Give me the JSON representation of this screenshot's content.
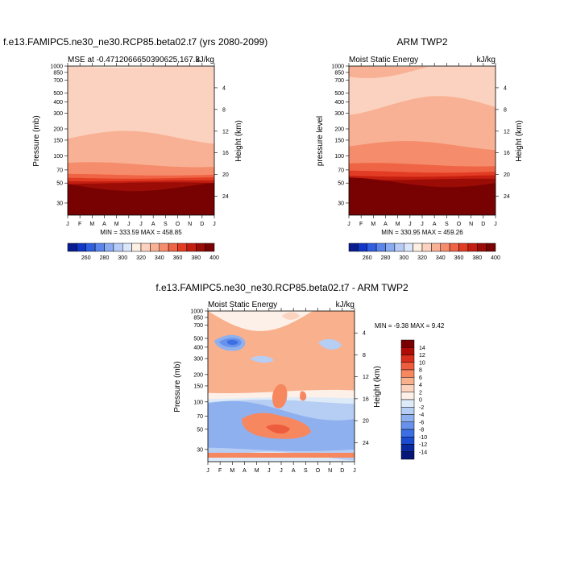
{
  "chart_data": [
    {
      "type": "heatmap",
      "title": "f.e13.FAMIPC5.ne30_ne30.RCP85.beta02.t7 (yrs 2080-2099)",
      "subtitle_left": "MSE at -0.4712066650390625,167.3",
      "subtitle_right": "kJ/kg",
      "ylabel": "Pressure (mb)",
      "ylabel_right": "Height (km)",
      "x_ticks": [
        "J",
        "F",
        "M",
        "A",
        "M",
        "J",
        "J",
        "A",
        "S",
        "O",
        "N",
        "D",
        "J"
      ],
      "y_ticks": [
        "30",
        "50",
        "70",
        "100",
        "150",
        "200",
        "300",
        "400",
        "500",
        "700",
        "850",
        "1000"
      ],
      "y_ticks_right": [
        "24",
        "20",
        "16",
        "12",
        "8",
        "4"
      ],
      "stats": "MIN = 333.59 MAX = 458.85",
      "colorbar_labels": [
        "260",
        "280",
        "300",
        "320",
        "340",
        "360",
        "380",
        "400"
      ],
      "bands": [
        {
          "p": 1000,
          "level": 330
        },
        {
          "p": 850,
          "level": 335
        },
        {
          "p": 600,
          "level": 330
        },
        {
          "p": 160,
          "level": 340
        },
        {
          "p": 80,
          "level": 350
        },
        {
          "p": 62,
          "level": 360
        },
        {
          "p": 57,
          "level": 370
        },
        {
          "p": 53,
          "level": 380
        },
        {
          "p": 50,
          "level": 390
        },
        {
          "p": 46,
          "level": 400
        }
      ]
    },
    {
      "type": "heatmap",
      "title": "ARM TWP2",
      "subtitle_left": "Moist Static Energy",
      "subtitle_right": "kJ/kg",
      "ylabel": "pressure level",
      "ylabel_right": "Height (km)",
      "x_ticks": [
        "J",
        "F",
        "M",
        "A",
        "M",
        "J",
        "J",
        "A",
        "S",
        "O",
        "N",
        "D",
        "J"
      ],
      "y_ticks": [
        "30",
        "50",
        "70",
        "100",
        "150",
        "200",
        "300",
        "400",
        "500",
        "700",
        "850",
        "1000"
      ],
      "y_ticks_right": [
        "24",
        "20",
        "16",
        "12",
        "8",
        "4"
      ],
      "stats": "MIN = 330.95 MAX = 459.26",
      "colorbar_labels": [
        "260",
        "280",
        "300",
        "320",
        "340",
        "360",
        "380",
        "400"
      ],
      "bands": [
        {
          "p": 1000,
          "level": 340
        },
        {
          "p": 930,
          "level": 330
        },
        {
          "p": 360,
          "level": 340
        },
        {
          "p": 130,
          "level": 350
        },
        {
          "p": 80,
          "level": 360
        },
        {
          "p": 67,
          "level": 370
        },
        {
          "p": 60,
          "level": 380
        },
        {
          "p": 55,
          "level": 390
        },
        {
          "p": 51,
          "level": 400
        }
      ]
    },
    {
      "type": "heatmap",
      "title": "f.e13.FAMIPC5.ne30_ne30.RCP85.beta02.t7 - ARM TWP2",
      "subtitle_left": "Moist Static Energy",
      "subtitle_right": "kJ/kg",
      "ylabel": "Pressure (mb)",
      "ylabel_right": "Height (km)",
      "x_ticks": [
        "J",
        "F",
        "M",
        "A",
        "M",
        "J",
        "J",
        "A",
        "S",
        "O",
        "N",
        "D",
        "J"
      ],
      "y_ticks": [
        "30",
        "50",
        "70",
        "100",
        "150",
        "200",
        "300",
        "400",
        "500",
        "700",
        "850",
        "1000"
      ],
      "y_ticks_right": [
        "24",
        "20",
        "16",
        "12",
        "8",
        "4"
      ],
      "stats": "MIN =  -9.38 MAX =   9.42",
      "colorbar_labels": [
        "14",
        "12",
        "10",
        "8",
        "6",
        "4",
        "2",
        "0",
        "-2",
        "-4",
        "-6",
        "-8",
        "-10",
        "-12",
        "-14"
      ],
      "bands": [
        {
          "p": 1000,
          "level": 6
        },
        {
          "p": 130,
          "level": 2
        },
        {
          "p": 110,
          "level": 0
        },
        {
          "p": 100,
          "level": -2
        },
        {
          "p": 80,
          "level": -4
        },
        {
          "p": 30,
          "level": -2
        },
        {
          "p": 25,
          "level": 0
        }
      ]
    }
  ],
  "colors": {
    "mse_colorbar": [
      "#0a1c8f",
      "#1037c7",
      "#2f5fdf",
      "#5b85ea",
      "#8aaaf2",
      "#b6cbf6",
      "#dbe6fb",
      "#fdefe1",
      "#fbd2bf",
      "#f8b194",
      "#f58c6c",
      "#ef6445",
      "#e23d24",
      "#c41e10",
      "#9b0c06",
      "#780202"
    ],
    "diff_colorbar": [
      "#7a0000",
      "#b00c06",
      "#d82f1c",
      "#ee5c3e",
      "#f7875f",
      "#f9b08c",
      "#fcd3bf",
      "#fdf0e8",
      "#ddeaf8",
      "#b6cdf4",
      "#8fb0ef",
      "#6791ea",
      "#3c6fe4",
      "#1a4bd0",
      "#0b2aa0",
      "#051578"
    ],
    "mse_levels": [
      250,
      260,
      270,
      280,
      290,
      300,
      310,
      320,
      330,
      340,
      350,
      360,
      370,
      380,
      390,
      400
    ],
    "diff_levels": [
      16,
      14,
      12,
      10,
      8,
      6,
      4,
      2,
      0,
      -2,
      -4,
      -6,
      -8,
      -10,
      -12,
      -14
    ]
  }
}
